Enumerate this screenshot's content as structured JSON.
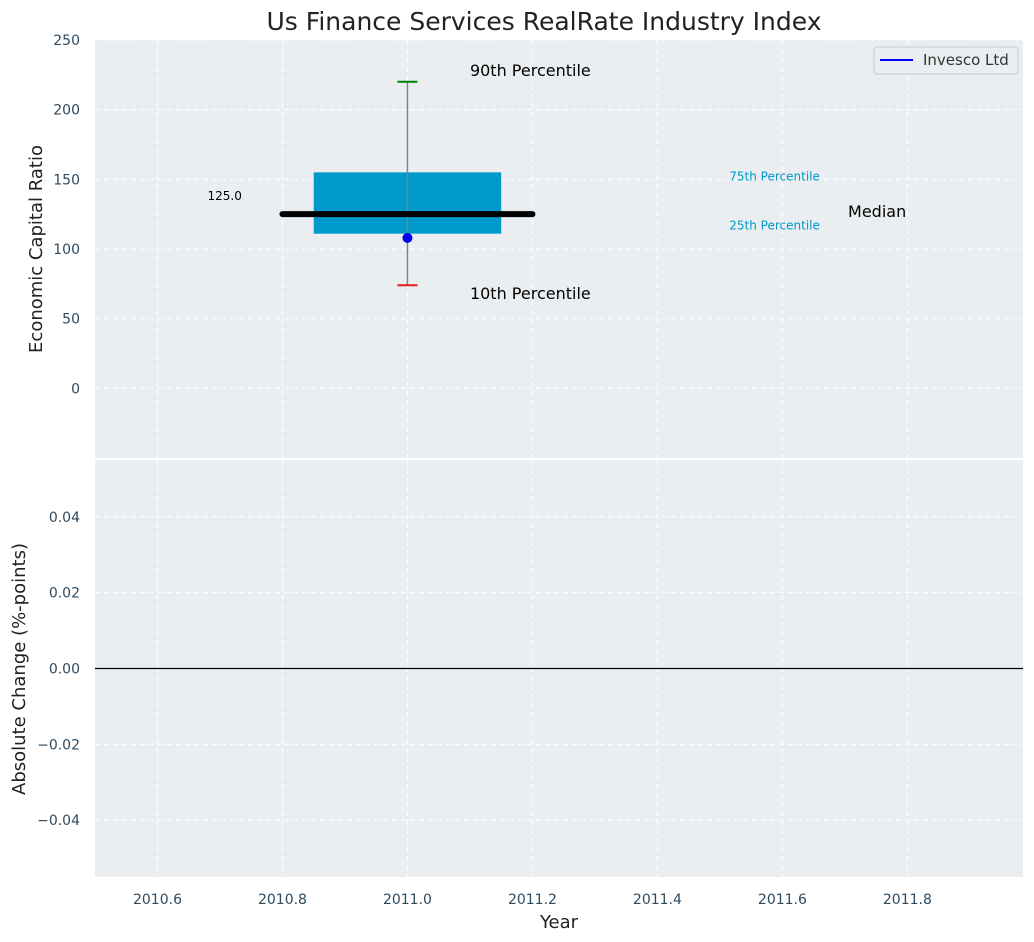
{
  "title": "Us Finance Services RealRate Industry Index",
  "colors": {
    "panel_bg": "#eaeef0",
    "grid": "#ffffff",
    "box": "#0099cc",
    "median": "#000000",
    "whisker": "#808080",
    "p90_cap": "#008000",
    "p10_cap": "#e31a1c",
    "company_dot": "#0000ee",
    "tick_text": "#2e4a5f",
    "percentile_label": "#0099cc"
  },
  "chart_data": [
    {
      "type": "box",
      "panel": "top",
      "title": "Us Finance Services RealRate Industry Index",
      "ylabel": "Economic Capital Ratio",
      "xlim": [
        2010.5,
        2011.985
      ],
      "ylim": [
        -50,
        250
      ],
      "yticks": [
        0,
        50,
        100,
        150,
        200,
        250
      ],
      "ytick_labels": [
        "0",
        "50",
        "100",
        "150",
        "200",
        "250"
      ],
      "grid": true,
      "legend": {
        "position": "top-right",
        "entries": [
          {
            "label": "Invesco Ltd",
            "color": "#0000ee"
          }
        ]
      },
      "box": {
        "x": 2011.0,
        "x_left": 2010.85,
        "x_right": 2011.15,
        "p10": 74,
        "p25": 111,
        "median": 125,
        "p75": 155,
        "p90": 220,
        "median_x_range": [
          2010.8,
          2011.2
        ]
      },
      "company_point": {
        "name": "Invesco Ltd",
        "x": 2011.0,
        "y": 108
      },
      "annotations": {
        "p90": {
          "text": "90th Percentile",
          "x": 2011.1,
          "y": 224
        },
        "p10": {
          "text": "10th Percentile",
          "x": 2011.1,
          "y": 64
        },
        "p75": {
          "text": "75th Percentile",
          "x": 2011.515,
          "y": 149
        },
        "p25": {
          "text": "25th Percentile",
          "x": 2011.515,
          "y": 114
        },
        "median": {
          "text": "Median",
          "x": 2011.705,
          "y": 123
        },
        "median_value": {
          "text": "125.0",
          "x": 2010.68,
          "y": 135
        }
      }
    },
    {
      "type": "line",
      "panel": "bottom",
      "xlabel": "Year",
      "ylabel": "Absolute Change (%-points)",
      "xlim": [
        2010.5,
        2011.985
      ],
      "ylim": [
        -0.055,
        0.055
      ],
      "xticks": [
        2010.6,
        2010.8,
        2011.0,
        2011.2,
        2011.4,
        2011.6,
        2011.8
      ],
      "xtick_labels": [
        "2010.6",
        "2010.8",
        "2011.0",
        "2011.2",
        "2011.4",
        "2011.6",
        "2011.8"
      ],
      "yticks": [
        0.04,
        0.02,
        0.0,
        -0.02,
        -0.04
      ],
      "ytick_labels": [
        "0.04",
        "0.02",
        "0.00",
        "−0.02",
        "−0.04"
      ],
      "grid": true,
      "zero_line": 0.0,
      "series": []
    }
  ]
}
